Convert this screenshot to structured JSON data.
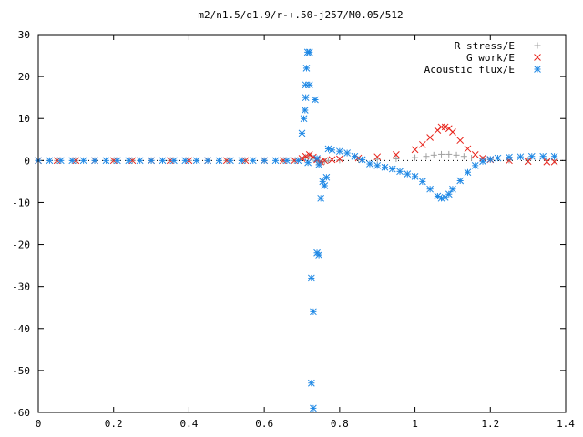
{
  "chart_data": {
    "type": "scatter",
    "title": "m2/n1.5/q1.9/r-+.50-j257/M0.05/512",
    "xlabel": "",
    "ylabel": "",
    "xlim": [
      0,
      1.4
    ],
    "ylim": [
      -60,
      30
    ],
    "x_ticks": [
      "0",
      "0.2",
      "0.4",
      "0.6",
      "0.8",
      "1",
      "1.2",
      "1.4"
    ],
    "y_ticks": [
      "-60",
      "-50",
      "-40",
      "-30",
      "-20",
      "-10",
      "0",
      "10",
      "20",
      "30"
    ],
    "x_tick_values": [
      0,
      0.2,
      0.4,
      0.6,
      0.8,
      1.0,
      1.2,
      1.4
    ],
    "y_tick_values": [
      -60,
      -50,
      -40,
      -30,
      -20,
      -10,
      0,
      10,
      20,
      30
    ],
    "grid": false,
    "legend_position": "top-right",
    "series": [
      {
        "name": "R stress/E",
        "marker": "plus",
        "color": "#a0a0a0",
        "points": [
          [
            0.0,
            0
          ],
          [
            0.05,
            0
          ],
          [
            0.1,
            0
          ],
          [
            0.15,
            0
          ],
          [
            0.2,
            0
          ],
          [
            0.25,
            0
          ],
          [
            0.3,
            0
          ],
          [
            0.35,
            0
          ],
          [
            0.4,
            0
          ],
          [
            0.45,
            0
          ],
          [
            0.5,
            0
          ],
          [
            0.55,
            0
          ],
          [
            0.6,
            0
          ],
          [
            0.65,
            0
          ],
          [
            0.68,
            0
          ],
          [
            0.7,
            0.3
          ],
          [
            0.71,
            0.8
          ],
          [
            0.72,
            1.2
          ],
          [
            0.73,
            0.5
          ],
          [
            0.74,
            -0.3
          ],
          [
            0.75,
            -0.5
          ],
          [
            0.76,
            -0.2
          ],
          [
            0.77,
            0
          ],
          [
            0.8,
            0.1
          ],
          [
            0.85,
            0.2
          ],
          [
            0.9,
            0.3
          ],
          [
            0.95,
            0.4
          ],
          [
            1.0,
            0.7
          ],
          [
            1.03,
            1.0
          ],
          [
            1.05,
            1.3
          ],
          [
            1.07,
            1.5
          ],
          [
            1.09,
            1.5
          ],
          [
            1.11,
            1.3
          ],
          [
            1.13,
            1.0
          ],
          [
            1.15,
            0.6
          ],
          [
            1.18,
            0.3
          ],
          [
            1.2,
            0.2
          ],
          [
            1.25,
            0.1
          ],
          [
            1.3,
            0.1
          ],
          [
            1.35,
            0.1
          ],
          [
            1.37,
            0.1
          ]
        ]
      },
      {
        "name": "G work/E",
        "marker": "cross",
        "color": "#e8231a",
        "points": [
          [
            0.0,
            0
          ],
          [
            0.05,
            0
          ],
          [
            0.1,
            0
          ],
          [
            0.15,
            0
          ],
          [
            0.2,
            0
          ],
          [
            0.25,
            0
          ],
          [
            0.3,
            0
          ],
          [
            0.35,
            0
          ],
          [
            0.4,
            0
          ],
          [
            0.45,
            0
          ],
          [
            0.5,
            0
          ],
          [
            0.55,
            0
          ],
          [
            0.6,
            0
          ],
          [
            0.65,
            0
          ],
          [
            0.68,
            0
          ],
          [
            0.7,
            0.5
          ],
          [
            0.71,
            1.0
          ],
          [
            0.72,
            1.4
          ],
          [
            0.73,
            0.8
          ],
          [
            0.74,
            0.2
          ],
          [
            0.75,
            -0.3
          ],
          [
            0.76,
            0
          ],
          [
            0.78,
            0.2
          ],
          [
            0.8,
            0.4
          ],
          [
            0.85,
            0.6
          ],
          [
            0.9,
            0.9
          ],
          [
            0.95,
            1.4
          ],
          [
            1.0,
            2.6
          ],
          [
            1.02,
            3.8
          ],
          [
            1.04,
            5.5
          ],
          [
            1.06,
            7.2
          ],
          [
            1.07,
            8.0
          ],
          [
            1.08,
            8.0
          ],
          [
            1.09,
            7.6
          ],
          [
            1.1,
            6.8
          ],
          [
            1.12,
            4.8
          ],
          [
            1.14,
            2.8
          ],
          [
            1.16,
            1.4
          ],
          [
            1.18,
            0.6
          ],
          [
            1.2,
            0.2
          ],
          [
            1.25,
            0
          ],
          [
            1.3,
            -0.2
          ],
          [
            1.35,
            -0.3
          ],
          [
            1.37,
            -0.3
          ]
        ]
      },
      {
        "name": "Acoustic flux/E",
        "marker": "star",
        "color": "#1e88e5",
        "points": [
          [
            0.0,
            0
          ],
          [
            0.03,
            0
          ],
          [
            0.06,
            0
          ],
          [
            0.09,
            0
          ],
          [
            0.12,
            0
          ],
          [
            0.15,
            0
          ],
          [
            0.18,
            0
          ],
          [
            0.21,
            0
          ],
          [
            0.24,
            0
          ],
          [
            0.27,
            0
          ],
          [
            0.3,
            0
          ],
          [
            0.33,
            0
          ],
          [
            0.36,
            0
          ],
          [
            0.39,
            0
          ],
          [
            0.42,
            0
          ],
          [
            0.45,
            0
          ],
          [
            0.48,
            0
          ],
          [
            0.51,
            0
          ],
          [
            0.54,
            0
          ],
          [
            0.57,
            0
          ],
          [
            0.6,
            0
          ],
          [
            0.63,
            0
          ],
          [
            0.66,
            0
          ],
          [
            0.69,
            0
          ],
          [
            0.7,
            6.5
          ],
          [
            0.705,
            10
          ],
          [
            0.71,
            15
          ],
          [
            0.715,
            25.8
          ],
          [
            0.72,
            25.8
          ],
          [
            0.712,
            22
          ],
          [
            0.71,
            18
          ],
          [
            0.72,
            18
          ],
          [
            0.708,
            12
          ],
          [
            0.716,
            -0.5
          ],
          [
            0.725,
            -28
          ],
          [
            0.73,
            -36
          ],
          [
            0.725,
            -53
          ],
          [
            0.73,
            -59
          ],
          [
            0.74,
            -22
          ],
          [
            0.745,
            -22.5
          ],
          [
            0.75,
            -9
          ],
          [
            0.755,
            -5
          ],
          [
            0.76,
            -6
          ],
          [
            0.765,
            -4
          ],
          [
            0.735,
            14.5
          ],
          [
            0.74,
            0.5
          ],
          [
            0.745,
            -1
          ],
          [
            0.77,
            2.8
          ],
          [
            0.78,
            2.5
          ],
          [
            0.8,
            2.2
          ],
          [
            0.82,
            1.8
          ],
          [
            0.84,
            1.0
          ],
          [
            0.86,
            0.2
          ],
          [
            0.88,
            -0.8
          ],
          [
            0.9,
            -1.2
          ],
          [
            0.92,
            -1.6
          ],
          [
            0.94,
            -2.0
          ],
          [
            0.96,
            -2.6
          ],
          [
            0.98,
            -3.2
          ],
          [
            1.0,
            -3.8
          ],
          [
            1.02,
            -5.0
          ],
          [
            1.04,
            -6.8
          ],
          [
            1.06,
            -8.5
          ],
          [
            1.07,
            -9.0
          ],
          [
            1.08,
            -8.8
          ],
          [
            1.09,
            -8.0
          ],
          [
            1.1,
            -6.8
          ],
          [
            1.12,
            -4.8
          ],
          [
            1.14,
            -2.8
          ],
          [
            1.16,
            -1.2
          ],
          [
            1.18,
            -0.2
          ],
          [
            1.2,
            0.3
          ],
          [
            1.22,
            0.6
          ],
          [
            1.25,
            0.8
          ],
          [
            1.28,
            0.9
          ],
          [
            1.31,
            1.0
          ],
          [
            1.34,
            1.0
          ],
          [
            1.37,
            1.0
          ]
        ]
      }
    ]
  }
}
